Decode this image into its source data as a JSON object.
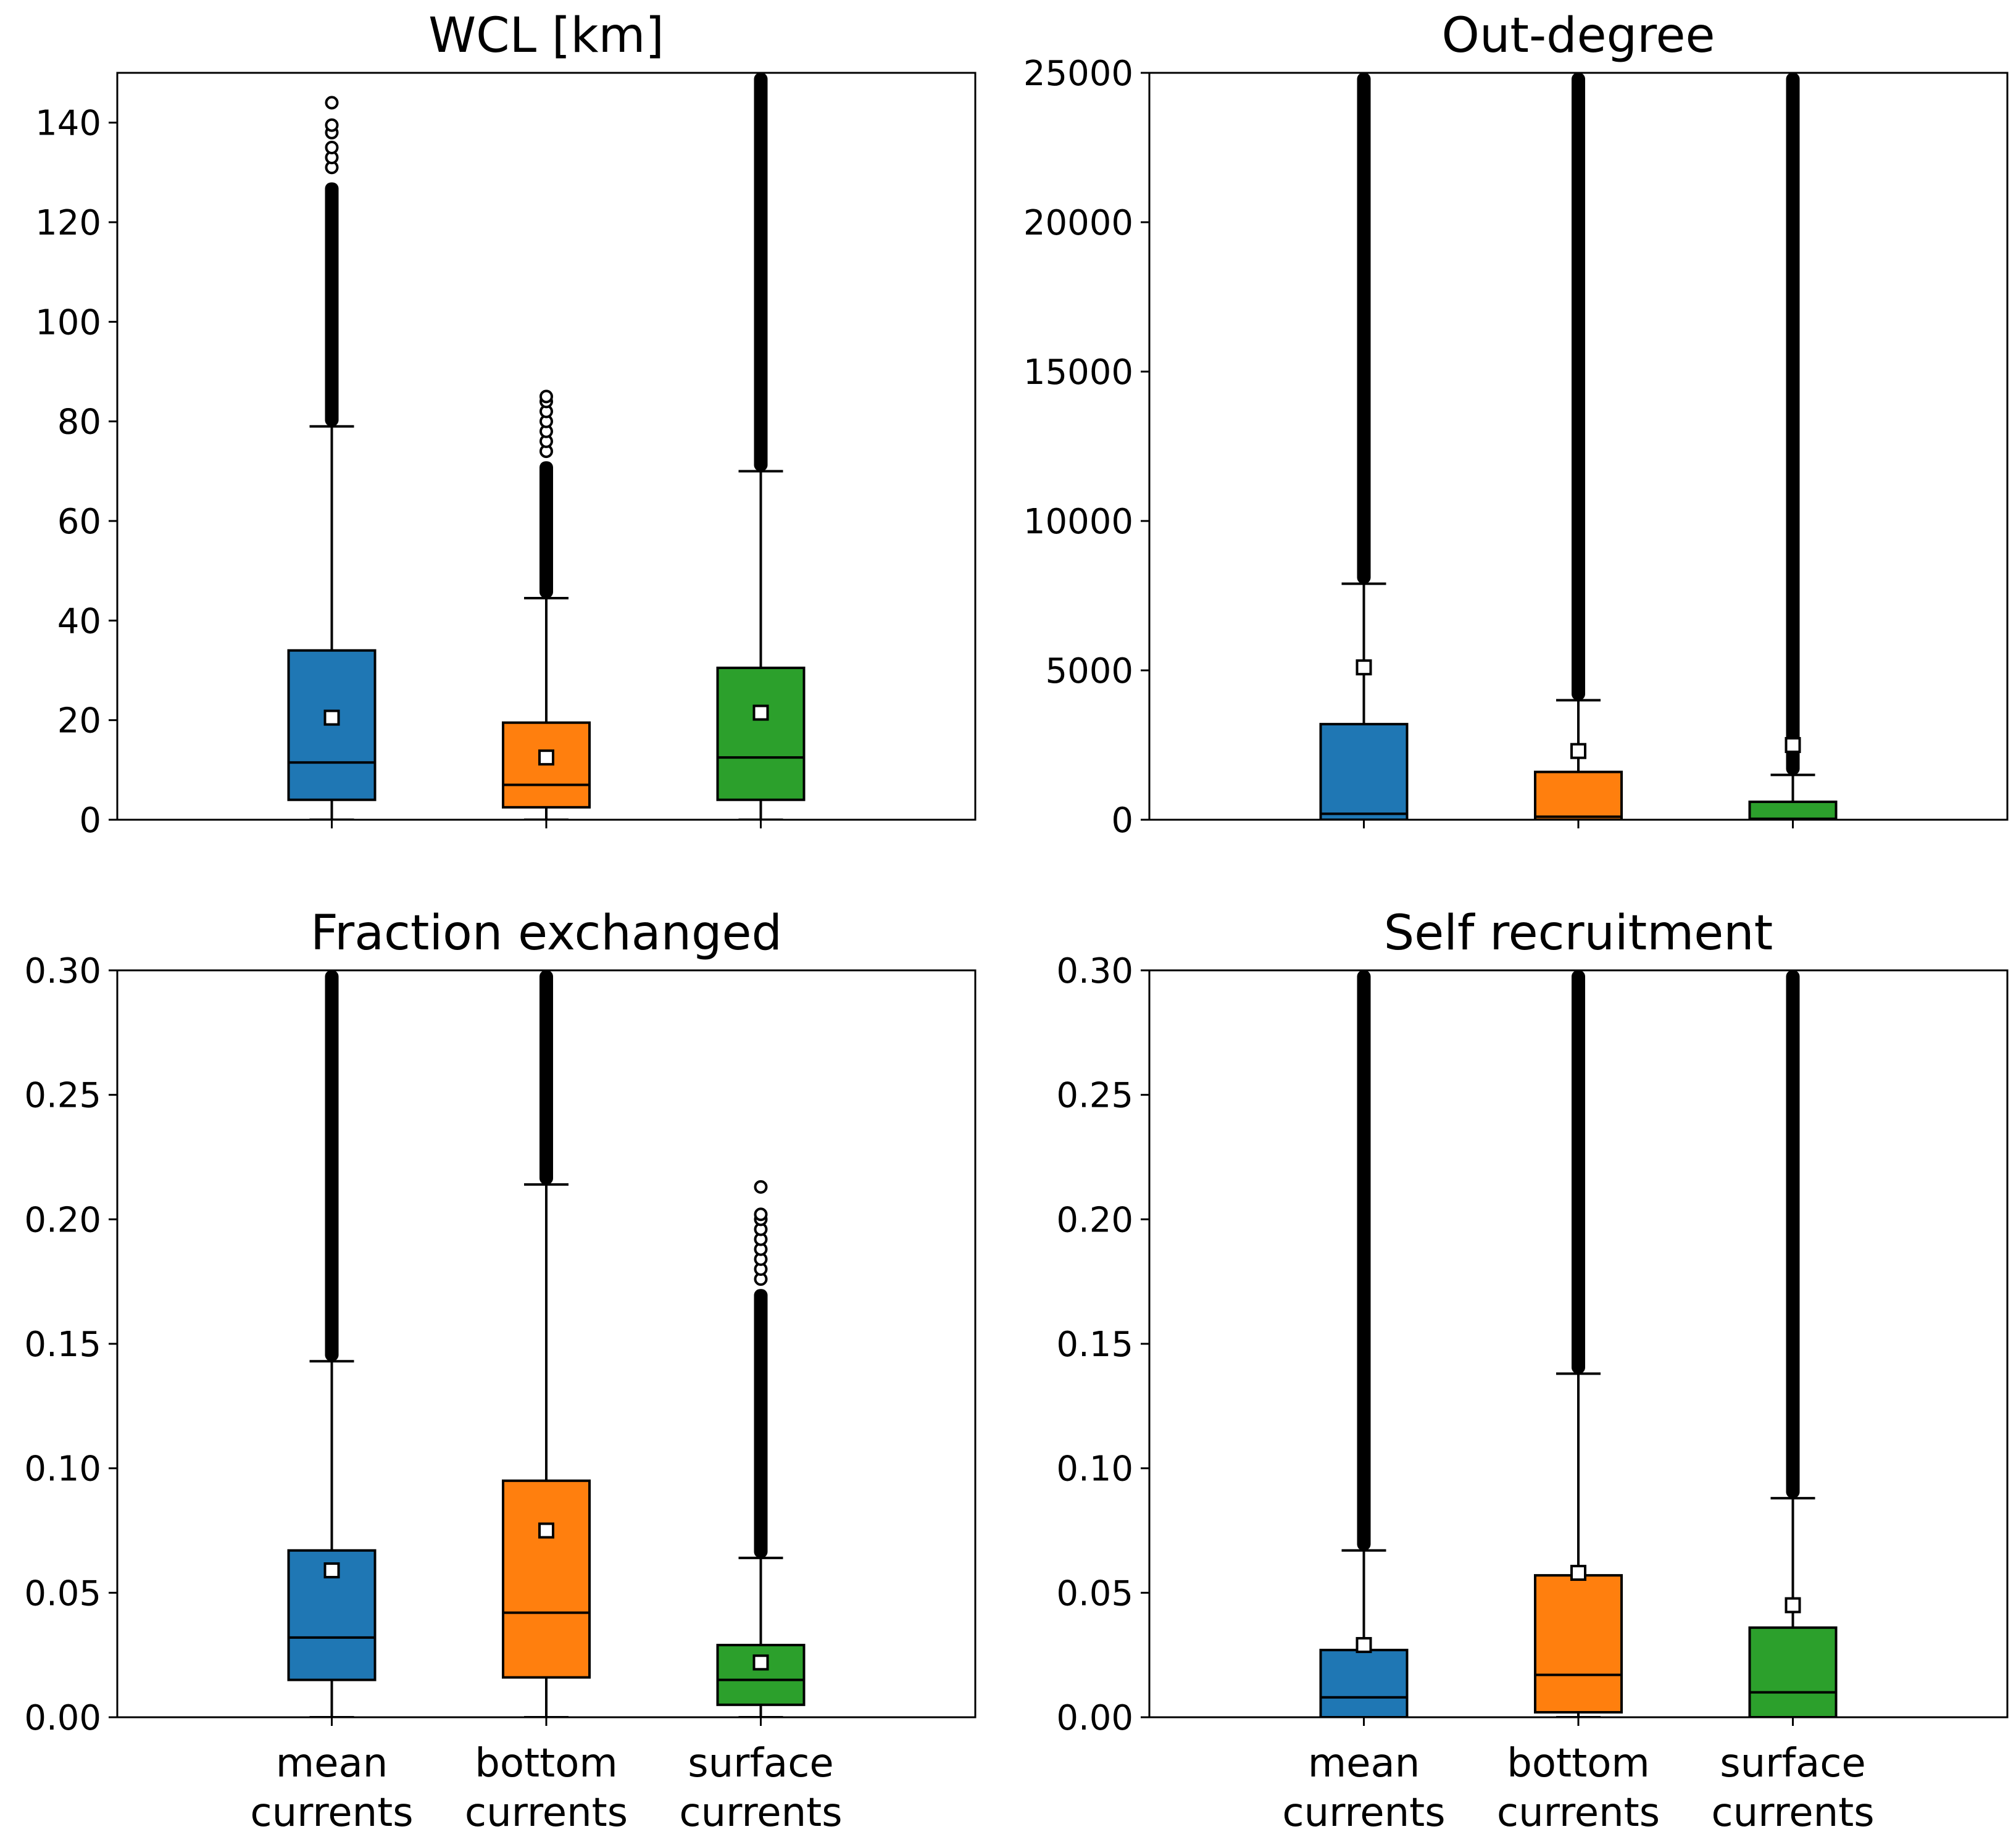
{
  "chart_data": [
    {
      "type": "box",
      "title": "WCL [km]",
      "ylim": [
        0,
        150
      ],
      "yticks": [
        0,
        20,
        40,
        60,
        80,
        100,
        120,
        140
      ],
      "ytick_labels": [
        "0",
        "20",
        "40",
        "60",
        "80",
        "100",
        "120",
        "140"
      ],
      "categories": [
        "mean currents",
        "bottom currents",
        "surface currents"
      ],
      "series": [
        {
          "name": "mean currents",
          "color": "#1f77b4",
          "whislo": 0,
          "q1": 4,
          "median": 11.5,
          "q3": 34,
          "whishi": 79,
          "mean": 20.5,
          "flier_start": 79,
          "flier_end": 128,
          "sparse_fliers": [
            131,
            133,
            135,
            138,
            139.5,
            144
          ]
        },
        {
          "name": "bottom currents",
          "color": "#ff7f0e",
          "whislo": 0,
          "q1": 2.5,
          "median": 7,
          "q3": 19.5,
          "whishi": 44.5,
          "mean": 12.5,
          "flier_start": 44.5,
          "flier_end": 72,
          "sparse_fliers": [
            74,
            76,
            78,
            80,
            82,
            84,
            85
          ]
        },
        {
          "name": "surface currents",
          "color": "#2ca02c",
          "whislo": 0,
          "q1": 4,
          "median": 12.5,
          "q3": 30.5,
          "whishi": 70,
          "mean": 21.5,
          "flier_start": 70,
          "flier_end": 150,
          "sparse_fliers": []
        }
      ]
    },
    {
      "type": "box",
      "title": "Out-degree",
      "ylim": [
        0,
        25000
      ],
      "yticks": [
        0,
        5000,
        10000,
        15000,
        20000,
        25000
      ],
      "ytick_labels": [
        "0",
        "5000",
        "10000",
        "15000",
        "20000",
        "25000"
      ],
      "categories": [
        "mean currents",
        "bottom currents",
        "surface currents"
      ],
      "series": [
        {
          "name": "mean currents",
          "color": "#1f77b4",
          "whislo": 0,
          "q1": 0,
          "median": 200,
          "q3": 3200,
          "whishi": 7900,
          "mean": 5100,
          "flier_start": 7900,
          "flier_end": 25000,
          "sparse_fliers": []
        },
        {
          "name": "bottom currents",
          "color": "#ff7f0e",
          "whislo": 0,
          "q1": 0,
          "median": 100,
          "q3": 1600,
          "whishi": 4000,
          "mean": 2300,
          "flier_start": 4000,
          "flier_end": 25000,
          "sparse_fliers": []
        },
        {
          "name": "surface currents",
          "color": "#2ca02c",
          "whislo": 0,
          "q1": 0,
          "median": 30,
          "q3": 600,
          "whishi": 1500,
          "mean": 2500,
          "flier_start": 1500,
          "flier_end": 25000,
          "sparse_fliers": []
        }
      ]
    },
    {
      "type": "box",
      "title": "Fraction exchanged",
      "ylim": [
        0,
        0.3
      ],
      "yticks": [
        0,
        0.05,
        0.1,
        0.15,
        0.2,
        0.25,
        0.3
      ],
      "ytick_labels": [
        "0.00",
        "0.05",
        "0.10",
        "0.15",
        "0.20",
        "0.25",
        "0.30"
      ],
      "categories": [
        "mean currents",
        "bottom currents",
        "surface currents"
      ],
      "series": [
        {
          "name": "mean currents",
          "color": "#1f77b4",
          "whislo": 0,
          "q1": 0.015,
          "median": 0.032,
          "q3": 0.067,
          "whishi": 0.143,
          "mean": 0.059,
          "flier_start": 0.143,
          "flier_end": 0.3,
          "sparse_fliers": []
        },
        {
          "name": "bottom currents",
          "color": "#ff7f0e",
          "whislo": 0,
          "q1": 0.016,
          "median": 0.042,
          "q3": 0.095,
          "whishi": 0.214,
          "mean": 0.075,
          "flier_start": 0.214,
          "flier_end": 0.3,
          "sparse_fliers": []
        },
        {
          "name": "surface currents",
          "color": "#2ca02c",
          "whislo": 0,
          "q1": 0.005,
          "median": 0.015,
          "q3": 0.029,
          "whishi": 0.064,
          "mean": 0.022,
          "flier_start": 0.064,
          "flier_end": 0.172,
          "sparse_fliers": [
            0.176,
            0.18,
            0.184,
            0.188,
            0.192,
            0.196,
            0.2,
            0.202,
            0.213
          ]
        }
      ]
    },
    {
      "type": "box",
      "title": "Self recruitment",
      "ylim": [
        0,
        0.3
      ],
      "yticks": [
        0,
        0.05,
        0.1,
        0.15,
        0.2,
        0.25,
        0.3
      ],
      "ytick_labels": [
        "0.00",
        "0.05",
        "0.10",
        "0.15",
        "0.20",
        "0.25",
        "0.30"
      ],
      "categories": [
        "mean currents",
        "bottom currents",
        "surface currents"
      ],
      "series": [
        {
          "name": "mean currents",
          "color": "#1f77b4",
          "whislo": 0,
          "q1": 0,
          "median": 0.008,
          "q3": 0.027,
          "whishi": 0.067,
          "mean": 0.029,
          "flier_start": 0.067,
          "flier_end": 0.3,
          "sparse_fliers": []
        },
        {
          "name": "bottom currents",
          "color": "#ff7f0e",
          "whislo": 0,
          "q1": 0.002,
          "median": 0.017,
          "q3": 0.057,
          "whishi": 0.138,
          "mean": 0.058,
          "flier_start": 0.138,
          "flier_end": 0.3,
          "sparse_fliers": []
        },
        {
          "name": "surface currents",
          "color": "#2ca02c",
          "whislo": 0,
          "q1": 0,
          "median": 0.01,
          "q3": 0.036,
          "whishi": 0.088,
          "mean": 0.045,
          "flier_start": 0.088,
          "flier_end": 0.3,
          "sparse_fliers": []
        }
      ]
    }
  ],
  "x_axis": {
    "category_lines": [
      [
        "mean",
        "currents"
      ],
      [
        "bottom",
        "currents"
      ],
      [
        "surface",
        "currents"
      ]
    ]
  }
}
